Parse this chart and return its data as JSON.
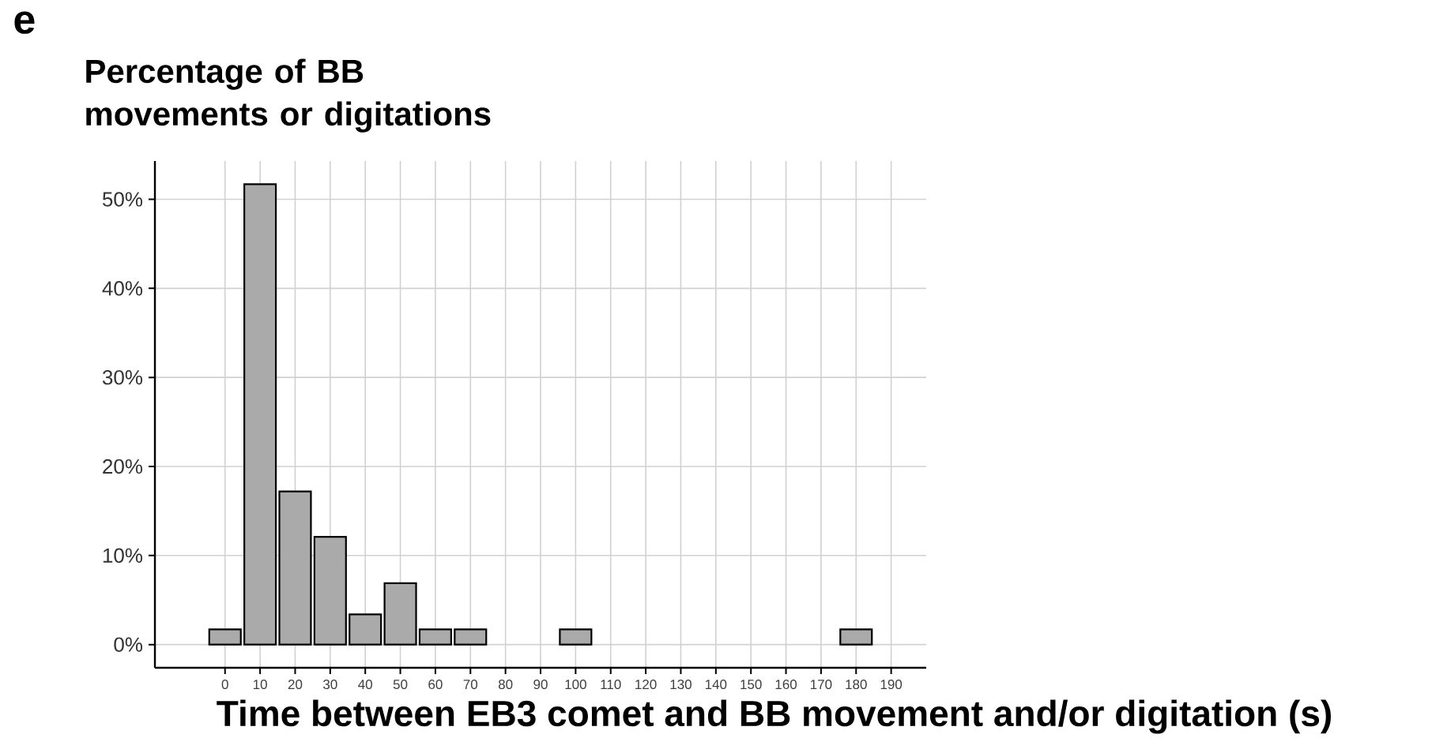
{
  "chart_data": {
    "type": "histogram",
    "title": "Percentage of BB movements or digitations",
    "xlabel": "Time between EB3 comet and BB movement and/or digitation (s)",
    "annotations": [
      "e"
    ],
    "bins": [
      -5,
      5,
      15,
      25,
      35,
      45,
      55,
      65,
      75,
      85,
      95,
      105,
      115,
      125,
      135,
      145,
      155,
      165,
      175,
      185
    ],
    "values": [
      1.7,
      51.7,
      17.2,
      12.1,
      3.4,
      6.9,
      1.7,
      1.7,
      0,
      0,
      1.7,
      0,
      0,
      0,
      0,
      0,
      0,
      0,
      1.7
    ],
    "color": "#aaaaaa",
    "xlim": [
      -20,
      200
    ],
    "xticks": [
      0,
      10,
      20,
      30,
      40,
      50,
      60,
      70,
      80,
      90,
      100,
      110,
      120,
      130,
      140,
      150,
      160,
      170,
      180,
      190
    ],
    "ylim": [
      -2.6,
      54.3
    ],
    "yticks": [
      {
        "value": 0,
        "label": "0%"
      },
      {
        "value": 10,
        "label": "10%"
      },
      {
        "value": 20,
        "label": "20%"
      },
      {
        "value": 30,
        "label": "30%"
      },
      {
        "value": 40,
        "label": "40%"
      },
      {
        "value": 50,
        "label": "50%"
      }
    ],
    "grid": true
  }
}
